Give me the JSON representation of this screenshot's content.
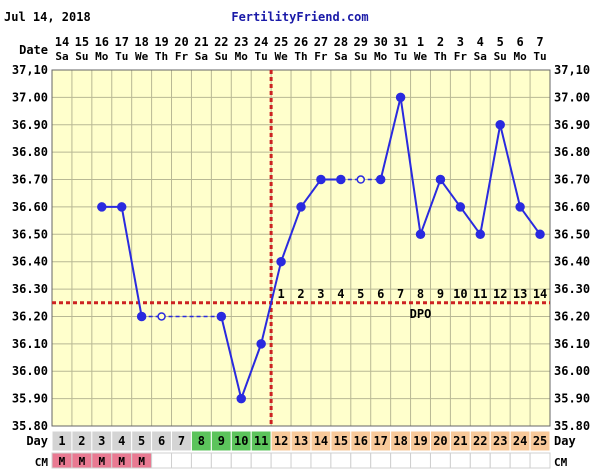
{
  "header": {
    "date_text": "Jul 14, 2018",
    "site_name": "FertilityFriend.com"
  },
  "labels": {
    "date_row": "Date",
    "day_row": "Day",
    "cm_row": "CM",
    "dpo": "DPO"
  },
  "chart_data": {
    "type": "line",
    "title": "",
    "x_dates": [
      "14",
      "15",
      "16",
      "17",
      "18",
      "19",
      "20",
      "21",
      "22",
      "23",
      "24",
      "25",
      "26",
      "27",
      "28",
      "29",
      "30",
      "31",
      "1",
      "2",
      "3",
      "4",
      "5",
      "6",
      "7"
    ],
    "x_weekdays": [
      "Sa",
      "Su",
      "Mo",
      "Tu",
      "We",
      "Th",
      "Fr",
      "Sa",
      "Su",
      "Mo",
      "Tu",
      "We",
      "Th",
      "Fr",
      "Sa",
      "Su",
      "Mo",
      "Tu",
      "We",
      "Th",
      "Fr",
      "Sa",
      "Su",
      "Mo",
      "Tu"
    ],
    "cycle_days": [
      "1",
      "2",
      "3",
      "4",
      "5",
      "6",
      "7",
      "8",
      "9",
      "10",
      "11",
      "12",
      "13",
      "14",
      "15",
      "16",
      "17",
      "18",
      "19",
      "20",
      "21",
      "22",
      "23",
      "24",
      "25"
    ],
    "dpo_numbers": [
      "1",
      "2",
      "3",
      "4",
      "5",
      "6",
      "7",
      "8",
      "9",
      "10",
      "11",
      "12",
      "13",
      "14"
    ],
    "y_ticks": [
      "37,10",
      "37.00",
      "36.90",
      "36.80",
      "36.70",
      "36.60",
      "36.50",
      "36.40",
      "36.30",
      "36.20",
      "36.10",
      "36.00",
      "35.90",
      "35.80"
    ],
    "ylim": [
      35.8,
      37.1
    ],
    "temperatures": [
      null,
      null,
      36.6,
      36.6,
      36.2,
      36.2,
      null,
      null,
      36.2,
      35.9,
      36.1,
      36.4,
      36.6,
      36.7,
      36.7,
      36.7,
      36.7,
      37.0,
      36.5,
      36.7,
      36.6,
      36.5,
      36.9,
      36.6,
      36.5
    ],
    "open_markers": [
      false,
      false,
      false,
      false,
      false,
      true,
      false,
      false,
      false,
      false,
      false,
      false,
      false,
      false,
      false,
      true,
      false,
      false,
      false,
      false,
      false,
      false,
      false,
      false,
      false
    ],
    "coverline": 36.25,
    "ovulation_day_index": 10,
    "cm_values": [
      "M",
      "M",
      "M",
      "M",
      "M",
      "",
      "",
      "",
      "",
      "",
      "",
      "",
      "",
      "",
      "",
      "",
      "",
      "",
      "",
      "",
      "",
      "",
      "",
      "",
      ""
    ],
    "colors": {
      "grid_bg": "#ffffcc",
      "grid_line": "#b8b894",
      "line": "#2a2adf",
      "coverline": "#cc2222",
      "period": "#e97a92",
      "day_gray": "#d4d4d4",
      "fertile_green": "#5cc45c",
      "luteal_orange": "#f8c99a",
      "site_blue": "#1a1aa8"
    }
  }
}
